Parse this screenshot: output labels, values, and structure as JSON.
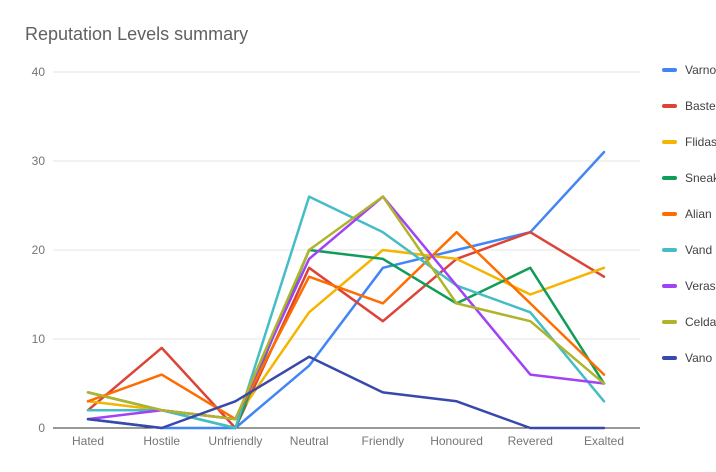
{
  "title": "Reputation Levels summary",
  "colors": {
    "background": "#ffffff",
    "title_text": "#616161",
    "axis_text": "#757575",
    "legend_text": "#424242",
    "gridline": "#e6e6e6",
    "axis_line": "#333333"
  },
  "chart_data": {
    "type": "line",
    "title": "Reputation Levels summary",
    "categories": [
      "Hated",
      "Hostile",
      "Unfriendly",
      "Neutral",
      "Friendly",
      "Honoured",
      "Revered",
      "Exalted"
    ],
    "series": [
      {
        "name": "Varno",
        "color": "#4285F4",
        "values": [
          1,
          0,
          0,
          7,
          18,
          20,
          22,
          31
        ]
      },
      {
        "name": "Baste",
        "color": "#DB4437",
        "values": [
          2,
          9,
          0,
          18,
          12,
          19,
          22,
          17
        ]
      },
      {
        "name": "Flidas",
        "color": "#F4B400",
        "values": [
          3,
          2,
          1,
          13,
          20,
          19,
          15,
          18
        ]
      },
      {
        "name": "Sneak",
        "color": "#0F9D58",
        "values": [
          4,
          2,
          0,
          20,
          19,
          14,
          18,
          5
        ]
      },
      {
        "name": "Alian",
        "color": "#FF6D00",
        "values": [
          3,
          6,
          1,
          17,
          14,
          22,
          14,
          6
        ]
      },
      {
        "name": "Vand",
        "color": "#46BDC6",
        "values": [
          2,
          2,
          0,
          26,
          22,
          16,
          13,
          3
        ]
      },
      {
        "name": "Veras",
        "color": "#A142F4",
        "values": [
          1,
          2,
          1,
          19,
          26,
          16,
          6,
          5
        ]
      },
      {
        "name": "Celda",
        "color": "#AFB42B",
        "values": [
          4,
          2,
          1,
          20,
          26,
          14,
          12,
          5
        ]
      },
      {
        "name": "Vano",
        "color": "#3949AB",
        "values": [
          1,
          0,
          3,
          8,
          4,
          3,
          0,
          0
        ]
      }
    ],
    "xlabel": "",
    "ylabel": "",
    "ylim": [
      0,
      40
    ],
    "yticks": [
      0,
      10,
      20,
      30,
      40
    ],
    "grid": true,
    "legend_position": "right"
  }
}
